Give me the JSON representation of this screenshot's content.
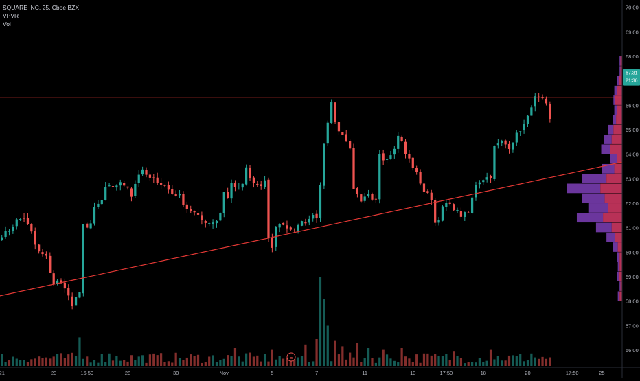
{
  "legend": {
    "symbol": "SQUARE INC, 25, Cboe BZX",
    "indicator_1": "VPVR",
    "indicator_2": "Vol"
  },
  "price_tag": {
    "price": "67.31",
    "countdown": "21:36"
  },
  "event_badge": "E",
  "colors": {
    "up": "#26a69a",
    "down": "#ef5350",
    "trend": "#e53935",
    "vp_up": "#7e3fb8",
    "vp_down": "#d83a66",
    "tag": "#26a69a"
  },
  "chart_data": {
    "type": "candlestick",
    "title": "SQUARE INC, 25, Cboe BZX",
    "y_axis_ticks": [
      "70.00",
      "69.00",
      "68.00",
      "67.00",
      "66.00",
      "65.00",
      "64.00",
      "63.00",
      "62.00",
      "61.00",
      "60.00",
      "59.00",
      "58.00",
      "57.00",
      "56.00"
    ],
    "y_tick_values": [
      70,
      69,
      68,
      67,
      66,
      65,
      64,
      63,
      62,
      61,
      60,
      59,
      58,
      57,
      56
    ],
    "ylim": [
      55.3,
      70.3
    ],
    "x_axis_ticks": [
      "21",
      "23",
      "16:50",
      "28",
      "30",
      "Nov",
      "5",
      "7",
      "11",
      "13",
      "17:50",
      "18",
      "20",
      "17:50",
      "25"
    ],
    "x_tick_index": [
      0,
      14,
      23,
      34,
      47,
      60,
      73,
      85,
      98,
      111,
      120,
      130,
      142,
      154,
      162
    ],
    "x_count": 168,
    "last_candle_index": 148,
    "price_anchors": [
      [
        0,
        60.7
      ],
      [
        2,
        60.9
      ],
      [
        4,
        61.3
      ],
      [
        6,
        61.4
      ],
      [
        8,
        60.8
      ],
      [
        9,
        60.3
      ],
      [
        10,
        60.0
      ],
      [
        12,
        59.8
      ],
      [
        13,
        59.2
      ],
      [
        14,
        58.7
      ],
      [
        15,
        58.8
      ],
      [
        17,
        58.6
      ],
      [
        18,
        58.2
      ],
      [
        19,
        57.8
      ],
      [
        20,
        58.1
      ],
      [
        21,
        58.3
      ],
      [
        22,
        61.2
      ],
      [
        23,
        61.0
      ],
      [
        24,
        61.1
      ],
      [
        25,
        61.8
      ],
      [
        27,
        62.1
      ],
      [
        28,
        62.6
      ],
      [
        30,
        62.7
      ],
      [
        32,
        62.8
      ],
      [
        34,
        62.7
      ],
      [
        35,
        62.3
      ],
      [
        36,
        62.8
      ],
      [
        37,
        63.2
      ],
      [
        38,
        63.3
      ],
      [
        40,
        63.0
      ],
      [
        42,
        62.9
      ],
      [
        44,
        62.7
      ],
      [
        46,
        62.4
      ],
      [
        48,
        62.3
      ],
      [
        49,
        62.0
      ],
      [
        50,
        61.8
      ],
      [
        52,
        61.6
      ],
      [
        54,
        61.3
      ],
      [
        56,
        61.2
      ],
      [
        58,
        61.3
      ],
      [
        59,
        61.6
      ],
      [
        60,
        62.5
      ],
      [
        61,
        62.2
      ],
      [
        62,
        62.8
      ],
      [
        64,
        62.6
      ],
      [
        65,
        62.8
      ],
      [
        66,
        63.4
      ],
      [
        67,
        63.0
      ],
      [
        68,
        62.8
      ],
      [
        70,
        62.7
      ],
      [
        71,
        62.9
      ],
      [
        72,
        60.5
      ],
      [
        73,
        60.2
      ],
      [
        74,
        61.0
      ],
      [
        75,
        61.2
      ],
      [
        77,
        61.0
      ],
      [
        79,
        60.9
      ],
      [
        81,
        61.2
      ],
      [
        83,
        61.3
      ],
      [
        84,
        61.6
      ],
      [
        85,
        61.4
      ],
      [
        86,
        62.8
      ],
      [
        87,
        64.5
      ],
      [
        88,
        65.2
      ],
      [
        89,
        66.2
      ],
      [
        90,
        65.3
      ],
      [
        91,
        65.0
      ],
      [
        92,
        64.8
      ],
      [
        93,
        64.5
      ],
      [
        94,
        64.3
      ],
      [
        95,
        62.5
      ],
      [
        96,
        62.3
      ],
      [
        97,
        62.0
      ],
      [
        98,
        62.2
      ],
      [
        99,
        62.3
      ],
      [
        100,
        62.1
      ],
      [
        101,
        62.2
      ],
      [
        102,
        64.1
      ],
      [
        103,
        63.8
      ],
      [
        104,
        63.9
      ],
      [
        106,
        64.2
      ],
      [
        107,
        64.8
      ],
      [
        108,
        64.5
      ],
      [
        109,
        64.0
      ],
      [
        110,
        63.8
      ],
      [
        112,
        63.2
      ],
      [
        114,
        62.5
      ],
      [
        116,
        62.2
      ],
      [
        117,
        61.2
      ],
      [
        118,
        61.4
      ],
      [
        119,
        61.8
      ],
      [
        120,
        62.0
      ],
      [
        122,
        61.8
      ],
      [
        124,
        61.5
      ],
      [
        126,
        61.6
      ],
      [
        127,
        62.2
      ],
      [
        128,
        62.8
      ],
      [
        130,
        63.0
      ],
      [
        132,
        63.1
      ],
      [
        133,
        64.3
      ],
      [
        135,
        64.5
      ],
      [
        137,
        64.3
      ],
      [
        139,
        64.8
      ],
      [
        141,
        65.2
      ],
      [
        142,
        65.5
      ],
      [
        143,
        66.0
      ],
      [
        144,
        66.3
      ],
      [
        146,
        66.2
      ],
      [
        147,
        66.0
      ],
      [
        148,
        65.4
      ],
      [
        150,
        65.5
      ],
      [
        152,
        66.0
      ],
      [
        153,
        65.8
      ],
      [
        155,
        66.3
      ],
      [
        157,
        66.8
      ],
      [
        158,
        66.6
      ],
      [
        159,
        67.3
      ],
      [
        160,
        67.6
      ],
      [
        161,
        66.5
      ],
      [
        162,
        67.3
      ]
    ],
    "volume_spikes": [
      [
        21,
        32
      ],
      [
        29,
        14
      ],
      [
        63,
        20
      ],
      [
        73,
        18
      ],
      [
        82,
        24
      ],
      [
        85,
        30
      ],
      [
        86,
        100
      ],
      [
        87,
        75
      ],
      [
        88,
        45
      ],
      [
        90,
        28
      ],
      [
        92,
        22
      ],
      [
        96,
        26
      ],
      [
        99,
        20
      ],
      [
        103,
        18
      ],
      [
        108,
        20
      ],
      [
        114,
        14
      ],
      [
        122,
        16
      ],
      [
        132,
        18
      ],
      [
        143,
        14
      ]
    ],
    "trendlines": [
      {
        "name": "horizontal resistance",
        "points": [
          [
            0,
            66.33
          ],
          [
            168,
            66.33
          ]
        ]
      },
      {
        "name": "rising support",
        "points": [
          [
            0,
            58.22
          ],
          [
            168,
            63.68
          ]
        ]
      }
    ],
    "volume_profile": {
      "price_levels": [
        58.0,
        58.4,
        58.8,
        59.2,
        59.6,
        60.0,
        60.4,
        60.8,
        61.2,
        61.6,
        62.0,
        62.4,
        62.8,
        63.2,
        63.6,
        64.0,
        64.4,
        64.8,
        65.2,
        65.6,
        66.0,
        66.4,
        66.8,
        67.2,
        67.6
      ],
      "up_volume": [
        2,
        1,
        2,
        2,
        3,
        6,
        10,
        18,
        30,
        22,
        26,
        38,
        28,
        14,
        8,
        10,
        9,
        6,
        4,
        3,
        2,
        3,
        2,
        1,
        1
      ],
      "down_volume": [
        3,
        2,
        4,
        3,
        3,
        5,
        8,
        12,
        22,
        16,
        20,
        25,
        18,
        9,
        6,
        14,
        12,
        10,
        7,
        6,
        8,
        6,
        4,
        2,
        2
      ]
    },
    "grid": false,
    "legend_position": "top-left"
  }
}
